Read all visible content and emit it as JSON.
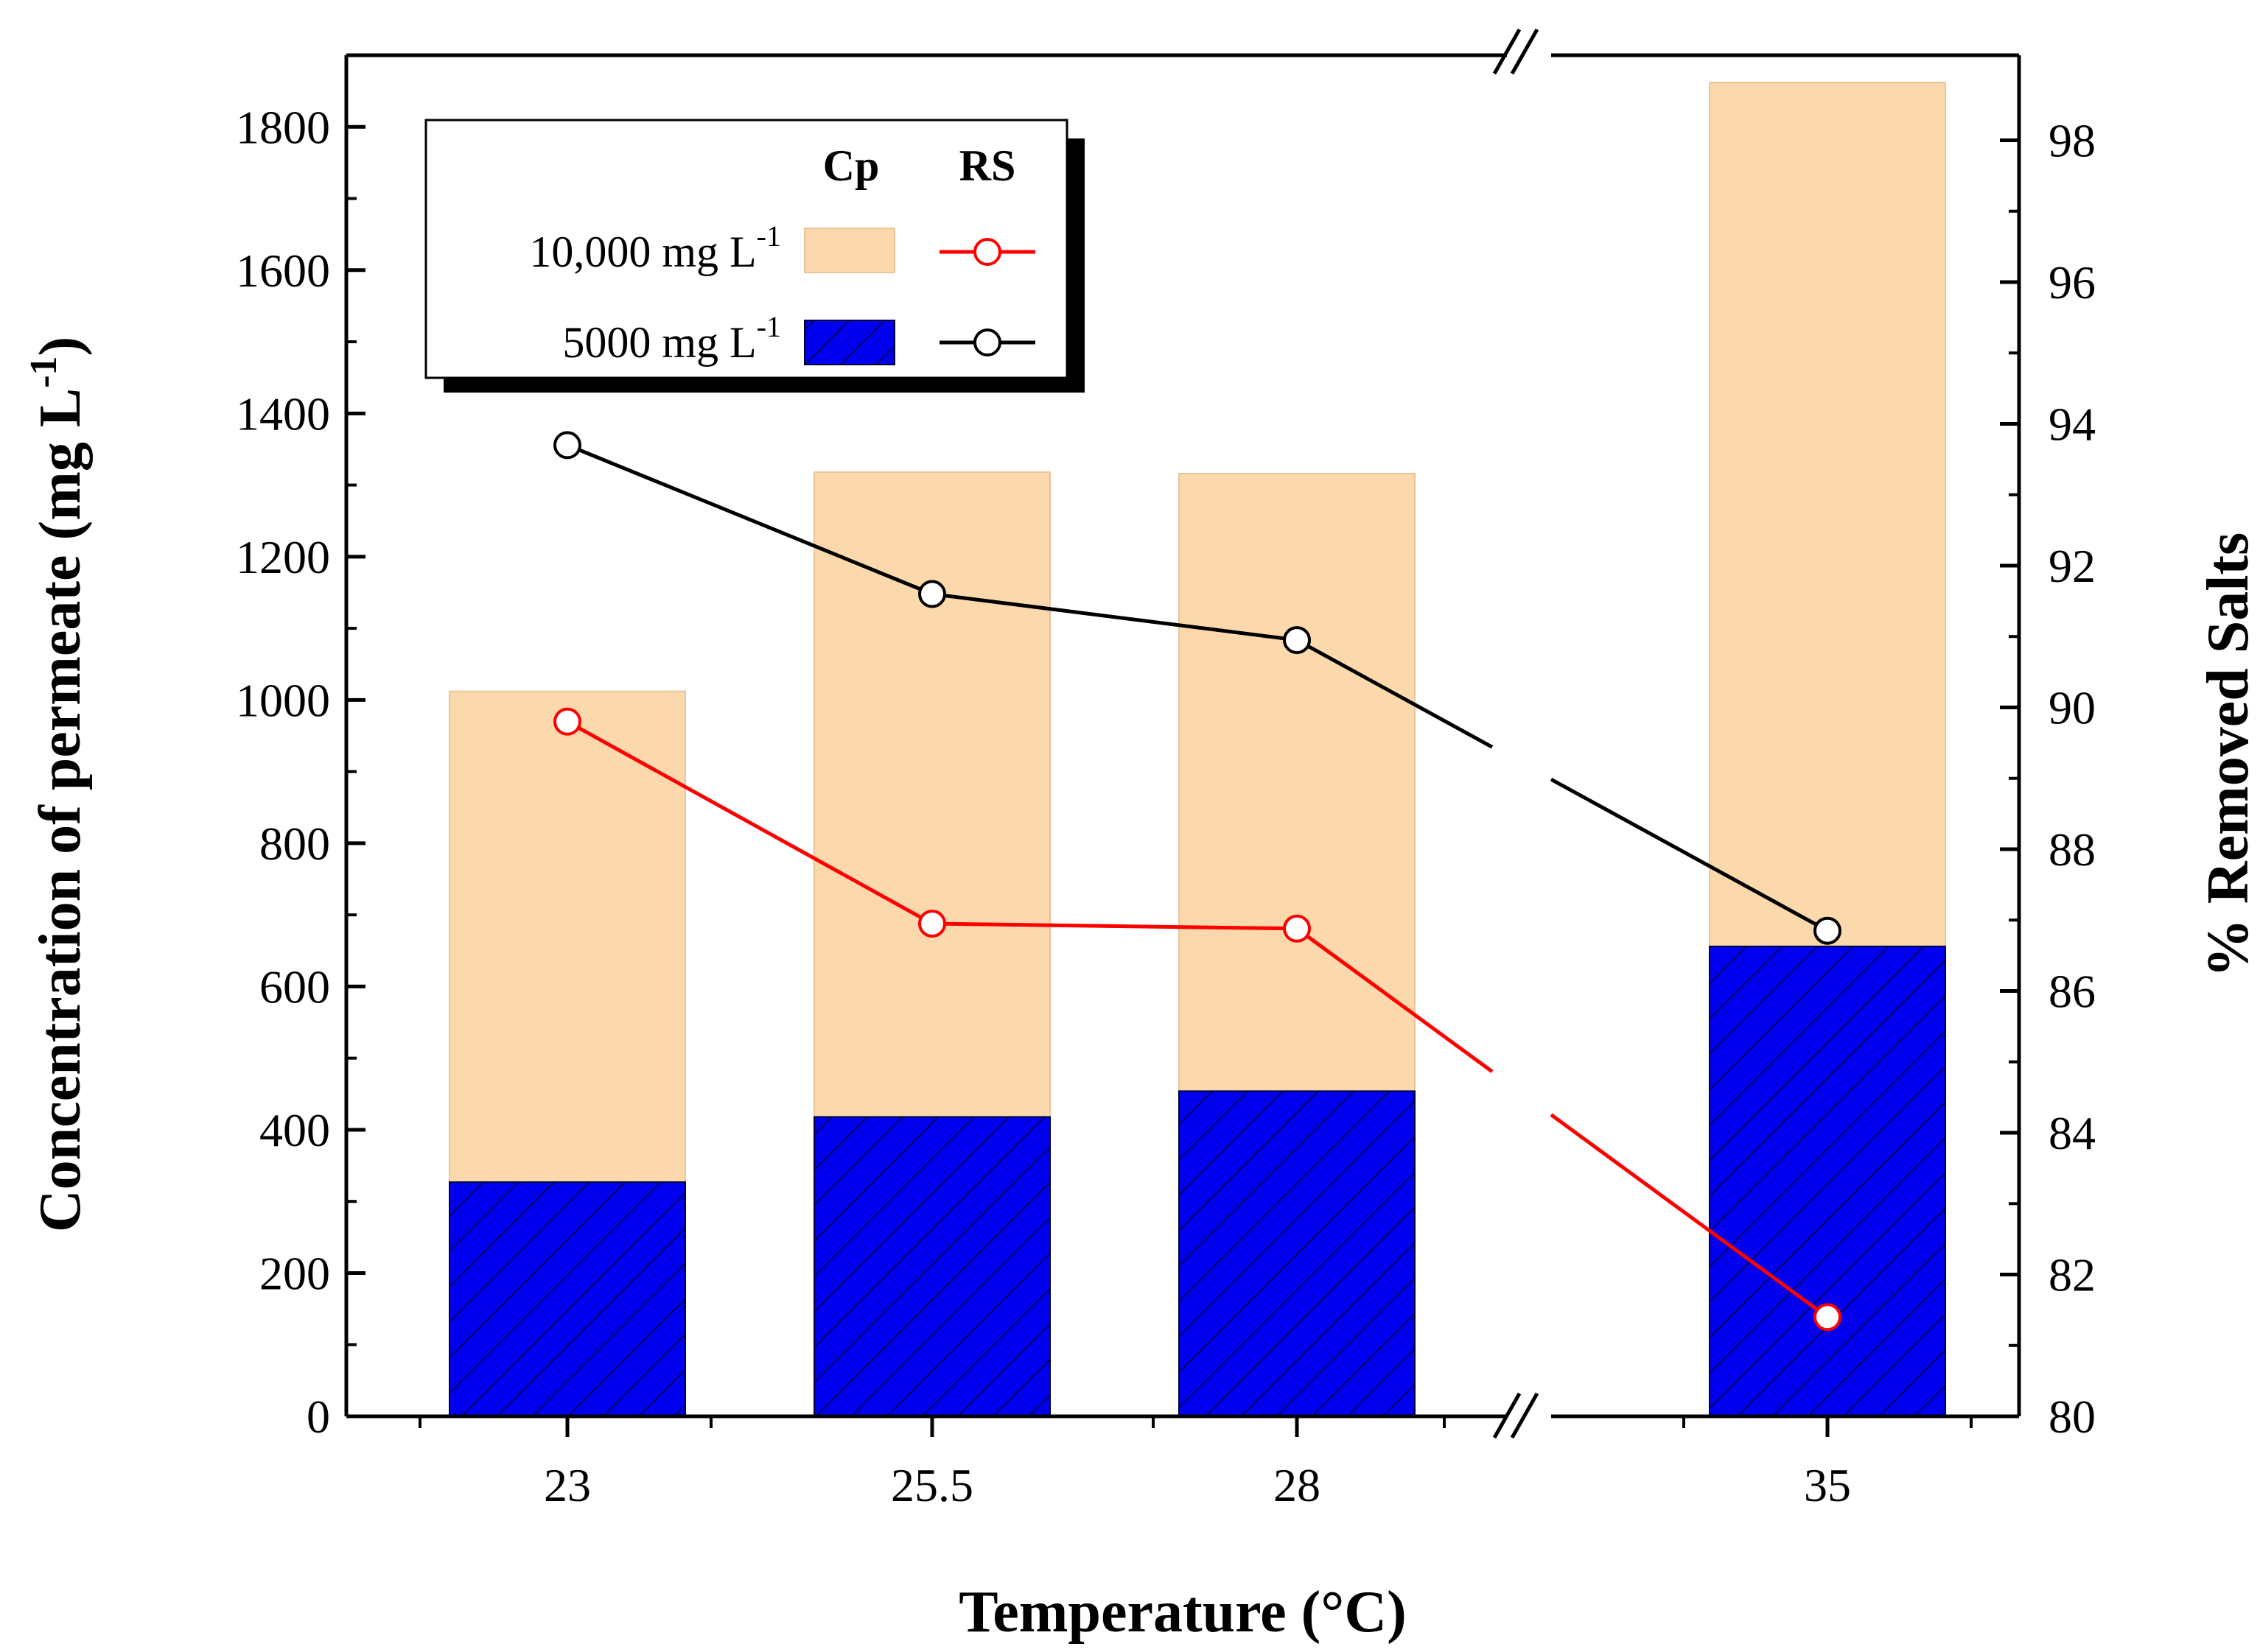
{
  "chart_data": {
    "type": "bar",
    "categories": [
      "23",
      "25.5",
      "28",
      "35"
    ],
    "xlabel": "Temperature (°C)",
    "ylabel": "Concentration of permeate (mg L",
    "ylabel_sup": "-1",
    "ylabel_close": ")",
    "y2label": "% Removed Salts",
    "ylim": [
      0,
      1900
    ],
    "y2lim": [
      80,
      99.2
    ],
    "yticks": [
      0,
      200,
      400,
      600,
      800,
      1000,
      1200,
      1400,
      1600,
      1800
    ],
    "y2ticks": [
      80,
      82,
      84,
      86,
      88,
      90,
      92,
      94,
      96,
      98
    ],
    "bars": [
      {
        "name": "10,000 mg L-1 (Cp)",
        "values": [
          1012,
          1318,
          1316,
          1862
        ],
        "color": "#fcd9ad"
      },
      {
        "name": "5000 mg L-1 (Cp)",
        "values": [
          327,
          418,
          454,
          656
        ],
        "color": "#0000ee"
      }
    ],
    "lines": [
      {
        "name": "10,000 mg L-1 (RS)",
        "values": [
          89.8,
          86.95,
          86.88,
          81.4
        ],
        "color": "#ff0000"
      },
      {
        "name": "5000 mg L-1 (RS)",
        "values": [
          93.7,
          91.6,
          90.95,
          86.85
        ],
        "color": "#000000"
      }
    ],
    "legend": {
      "header_cp": "Cp",
      "header_rs": "RS",
      "row1_label": "10,000 mg L",
      "row1_sup": "-1",
      "row2_label": "5000 mg L",
      "row2_sup": "-1",
      "placement": "top-left"
    },
    "axis_break": "between 28 and 35"
  }
}
